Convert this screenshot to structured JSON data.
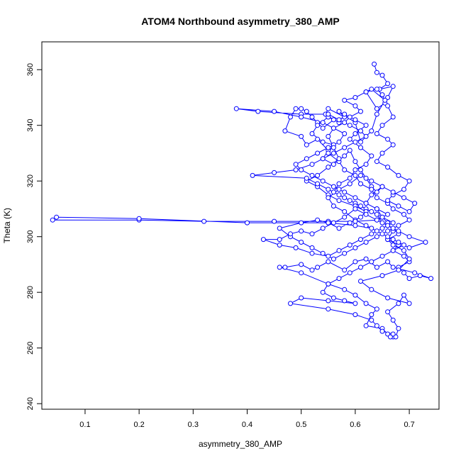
{
  "chart_data": {
    "type": "scatter",
    "title": "ATOM4 Northbound asymmetry_380_AMP",
    "xlabel": "asymmetry_380_AMP",
    "ylabel": "Theta (K)",
    "xlim": [
      0.02,
      0.755
    ],
    "ylim": [
      238,
      370
    ],
    "x_ticks": [
      0.1,
      0.2,
      0.3,
      0.4,
      0.5,
      0.6,
      0.7
    ],
    "y_ticks": [
      240,
      260,
      280,
      300,
      320,
      340,
      360
    ],
    "grid": false,
    "legend": "none",
    "series_style": "points connected by lines (type='o')",
    "color": "#0000ff",
    "series": [
      {
        "values": [
          [
            0.635,
            362
          ],
          [
            0.64,
            359
          ],
          [
            0.65,
            358
          ],
          [
            0.66,
            355
          ],
          [
            0.645,
            353
          ],
          [
            0.67,
            354
          ],
          [
            0.66,
            350
          ],
          [
            0.655,
            348
          ],
          [
            0.64,
            346
          ],
          [
            0.62,
            352
          ],
          [
            0.63,
            353
          ],
          [
            0.655,
            349
          ],
          [
            0.64,
            344
          ],
          [
            0.63,
            338
          ],
          [
            0.61,
            334
          ],
          [
            0.6,
            341
          ],
          [
            0.57,
            345
          ],
          [
            0.58,
            343
          ],
          [
            0.55,
            346
          ],
          [
            0.545,
            344
          ],
          [
            0.56,
            342
          ],
          [
            0.54,
            339
          ],
          [
            0.53,
            341
          ],
          [
            0.52,
            343
          ],
          [
            0.51,
            345
          ],
          [
            0.5,
            346
          ],
          [
            0.49,
            346
          ],
          [
            0.48,
            343
          ],
          [
            0.47,
            338
          ],
          [
            0.5,
            336
          ],
          [
            0.51,
            333
          ],
          [
            0.53,
            335
          ],
          [
            0.55,
            331
          ],
          [
            0.54,
            328
          ],
          [
            0.56,
            326
          ],
          [
            0.58,
            329
          ],
          [
            0.59,
            331
          ],
          [
            0.6,
            327
          ],
          [
            0.61,
            324
          ],
          [
            0.62,
            321
          ],
          [
            0.63,
            318
          ],
          [
            0.64,
            316
          ],
          [
            0.65,
            318
          ],
          [
            0.63,
            315
          ],
          [
            0.62,
            312
          ],
          [
            0.64,
            310
          ],
          [
            0.65,
            307
          ],
          [
            0.66,
            305
          ],
          [
            0.67,
            302
          ],
          [
            0.66,
            299
          ],
          [
            0.68,
            297
          ],
          [
            0.67,
            295
          ],
          [
            0.69,
            293
          ],
          [
            0.7,
            291
          ],
          [
            0.68,
            289
          ],
          [
            0.69,
            287
          ],
          [
            0.7,
            285
          ],
          [
            0.72,
            286
          ],
          [
            0.74,
            285
          ],
          [
            0.71,
            287
          ],
          [
            0.67,
            289
          ],
          [
            0.66,
            291
          ],
          [
            0.64,
            289
          ],
          [
            0.62,
            292
          ],
          [
            0.6,
            291
          ],
          [
            0.58,
            288
          ],
          [
            0.55,
            291
          ],
          [
            0.53,
            289
          ],
          [
            0.52,
            288
          ],
          [
            0.5,
            290
          ],
          [
            0.47,
            289
          ],
          [
            0.46,
            289
          ],
          [
            0.5,
            287
          ],
          [
            0.55,
            283
          ],
          [
            0.58,
            281
          ],
          [
            0.6,
            279
          ],
          [
            0.62,
            276
          ],
          [
            0.64,
            274
          ],
          [
            0.63,
            272
          ],
          [
            0.62,
            268
          ],
          [
            0.65,
            267
          ],
          [
            0.66,
            265
          ],
          [
            0.67,
            264
          ],
          [
            0.665,
            264
          ],
          [
            0.675,
            264
          ],
          [
            0.68,
            267
          ],
          [
            0.67,
            270
          ],
          [
            0.66,
            273
          ],
          [
            0.68,
            276
          ],
          [
            0.69,
            279
          ],
          [
            0.7,
            276
          ],
          [
            0.66,
            278
          ],
          [
            0.63,
            281
          ],
          [
            0.61,
            284
          ],
          [
            0.65,
            286
          ],
          [
            0.68,
            288
          ],
          [
            0.7,
            292
          ],
          [
            0.69,
            295
          ],
          [
            0.67,
            297
          ],
          [
            0.66,
            299
          ],
          [
            0.68,
            301
          ],
          [
            0.67,
            303
          ],
          [
            0.65,
            305
          ],
          [
            0.64,
            308
          ],
          [
            0.62,
            310
          ],
          [
            0.6,
            312
          ],
          [
            0.58,
            314
          ],
          [
            0.56,
            316
          ],
          [
            0.57,
            319
          ],
          [
            0.59,
            321
          ],
          [
            0.6,
            324
          ],
          [
            0.62,
            326
          ],
          [
            0.63,
            329
          ],
          [
            0.61,
            332
          ],
          [
            0.59,
            335
          ],
          [
            0.6,
            337
          ],
          [
            0.62,
            340
          ],
          [
            0.6,
            342
          ],
          [
            0.58,
            344
          ],
          [
            0.57,
            341
          ],
          [
            0.55,
            343
          ],
          [
            0.53,
            340
          ],
          [
            0.52,
            337
          ],
          [
            0.54,
            334
          ],
          [
            0.56,
            333
          ],
          [
            0.55,
            330
          ],
          [
            0.57,
            327
          ],
          [
            0.58,
            324
          ],
          [
            0.6,
            322
          ],
          [
            0.61,
            319
          ],
          [
            0.63,
            317
          ],
          [
            0.64,
            314
          ],
          [
            0.66,
            312
          ],
          [
            0.67,
            310
          ],
          [
            0.69,
            308
          ],
          [
            0.7,
            306
          ],
          [
            0.68,
            304
          ],
          [
            0.66,
            302
          ],
          [
            0.64,
            300
          ],
          [
            0.62,
            298
          ],
          [
            0.6,
            296
          ],
          [
            0.58,
            294
          ],
          [
            0.56,
            292
          ],
          [
            0.54,
            294
          ],
          [
            0.52,
            296
          ],
          [
            0.5,
            298
          ],
          [
            0.48,
            300
          ],
          [
            0.46,
            303
          ],
          [
            0.5,
            305
          ],
          [
            0.53,
            306
          ],
          [
            0.55,
            305
          ],
          [
            0.57,
            303
          ],
          [
            0.59,
            305
          ],
          [
            0.61,
            307
          ],
          [
            0.62,
            309
          ],
          [
            0.6,
            311
          ],
          [
            0.57,
            313
          ],
          [
            0.55,
            315
          ],
          [
            0.53,
            318
          ],
          [
            0.51,
            320
          ],
          [
            0.53,
            322
          ],
          [
            0.55,
            325
          ],
          [
            0.57,
            328
          ],
          [
            0.56,
            332
          ],
          [
            0.55,
            336
          ],
          [
            0.56,
            339
          ],
          [
            0.58,
            341
          ],
          [
            0.59,
            343
          ],
          [
            0.61,
            345
          ],
          [
            0.6,
            347
          ],
          [
            0.58,
            349
          ],
          [
            0.6,
            350
          ],
          [
            0.62,
            352
          ],
          [
            0.64,
            353
          ],
          [
            0.65,
            351
          ],
          [
            0.66,
            347
          ],
          [
            0.67,
            343
          ],
          [
            0.65,
            340
          ],
          [
            0.64,
            337
          ],
          [
            0.66,
            335
          ],
          [
            0.67,
            333
          ],
          [
            0.65,
            330
          ],
          [
            0.64,
            327
          ],
          [
            0.66,
            325
          ],
          [
            0.68,
            322
          ],
          [
            0.7,
            320
          ],
          [
            0.69,
            317
          ],
          [
            0.67,
            315
          ],
          [
            0.66,
            313
          ],
          [
            0.68,
            311
          ],
          [
            0.7,
            309
          ],
          [
            0.71,
            312
          ],
          [
            0.69,
            314
          ],
          [
            0.67,
            316
          ],
          [
            0.65,
            318
          ],
          [
            0.63,
            320
          ],
          [
            0.61,
            322
          ],
          [
            0.59,
            319
          ],
          [
            0.57,
            317
          ],
          [
            0.55,
            314
          ],
          [
            0.56,
            311
          ],
          [
            0.58,
            309
          ],
          [
            0.6,
            306
          ],
          [
            0.62,
            304
          ],
          [
            0.64,
            302
          ],
          [
            0.66,
            300
          ],
          [
            0.68,
            298
          ],
          [
            0.7,
            296
          ],
          [
            0.73,
            298
          ],
          [
            0.7,
            300
          ],
          [
            0.68,
            302
          ],
          [
            0.66,
            304
          ],
          [
            0.64,
            306
          ],
          [
            0.62,
            308
          ],
          [
            0.6,
            310
          ],
          [
            0.58,
            307
          ],
          [
            0.56,
            305
          ],
          [
            0.54,
            303
          ],
          [
            0.52,
            301
          ],
          [
            0.5,
            302
          ],
          [
            0.48,
            301
          ],
          [
            0.46,
            299
          ],
          [
            0.43,
            299
          ],
          [
            0.46,
            297
          ],
          [
            0.49,
            296
          ],
          [
            0.52,
            294
          ],
          [
            0.55,
            293
          ],
          [
            0.57,
            295
          ],
          [
            0.59,
            297
          ],
          [
            0.61,
            299
          ],
          [
            0.63,
            301
          ],
          [
            0.65,
            303
          ],
          [
            0.67,
            305
          ],
          [
            0.65,
            307
          ],
          [
            0.63,
            309
          ],
          [
            0.61,
            311
          ],
          [
            0.59,
            313
          ],
          [
            0.57,
            315
          ],
          [
            0.55,
            317
          ],
          [
            0.53,
            319
          ],
          [
            0.51,
            321
          ],
          [
            0.41,
            322
          ],
          [
            0.45,
            323
          ],
          [
            0.49,
            324
          ],
          [
            0.52,
            326
          ],
          [
            0.54,
            328
          ],
          [
            0.56,
            330
          ],
          [
            0.58,
            332
          ],
          [
            0.6,
            334
          ],
          [
            0.62,
            336
          ],
          [
            0.61,
            338
          ],
          [
            0.59,
            340
          ],
          [
            0.57,
            342
          ],
          [
            0.55,
            344
          ],
          [
            0.5,
            344
          ],
          [
            0.42,
            345
          ],
          [
            0.38,
            346
          ],
          [
            0.45,
            345
          ],
          [
            0.5,
            343
          ],
          [
            0.54,
            341
          ],
          [
            0.56,
            339
          ],
          [
            0.58,
            337
          ],
          [
            0.57,
            334
          ],
          [
            0.55,
            332
          ],
          [
            0.53,
            330
          ],
          [
            0.51,
            328
          ],
          [
            0.49,
            326
          ],
          [
            0.5,
            324
          ],
          [
            0.52,
            322
          ],
          [
            0.54,
            320
          ],
          [
            0.56,
            318
          ],
          [
            0.58,
            316
          ],
          [
            0.6,
            314
          ],
          [
            0.62,
            312
          ],
          [
            0.64,
            310
          ],
          [
            0.66,
            308
          ],
          [
            0.64,
            306
          ],
          [
            0.6,
            305.5
          ],
          [
            0.55,
            305.5
          ],
          [
            0.45,
            305.5
          ],
          [
            0.32,
            305.5
          ],
          [
            0.2,
            306
          ],
          [
            0.04,
            306
          ],
          [
            0.047,
            307
          ],
          [
            0.2,
            306.5
          ],
          [
            0.4,
            305
          ],
          [
            0.55,
            305
          ],
          [
            0.6,
            304
          ],
          [
            0.63,
            303
          ],
          [
            0.65,
            301
          ],
          [
            0.67,
            299
          ],
          [
            0.69,
            297
          ],
          [
            0.67,
            295
          ],
          [
            0.65,
            293
          ],
          [
            0.63,
            291
          ],
          [
            0.61,
            289
          ],
          [
            0.59,
            287
          ],
          [
            0.57,
            285
          ],
          [
            0.55,
            283
          ],
          [
            0.54,
            280
          ],
          [
            0.56,
            278
          ],
          [
            0.58,
            277
          ],
          [
            0.6,
            276
          ],
          [
            0.55,
            277
          ],
          [
            0.5,
            278
          ],
          [
            0.48,
            276
          ],
          [
            0.55,
            274
          ],
          [
            0.6,
            272
          ],
          [
            0.63,
            270
          ],
          [
            0.64,
            268
          ],
          [
            0.65,
            266
          ],
          [
            0.67,
            265
          ]
        ]
      }
    ]
  }
}
